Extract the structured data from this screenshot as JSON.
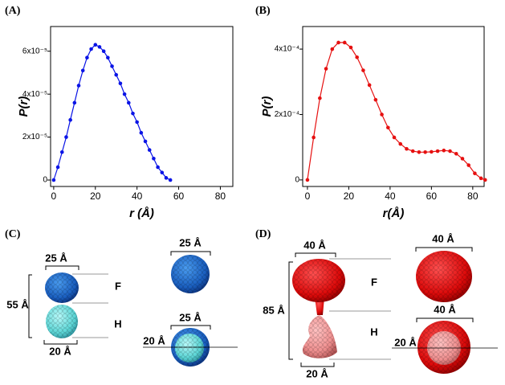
{
  "chart_data": [
    {
      "type": "line",
      "label": "(A)",
      "xlabel": "r (Å)",
      "ylabel": "P(r)",
      "color": "#0a14e6",
      "x": [
        0,
        2,
        4,
        6,
        8,
        10,
        12,
        14,
        16,
        18,
        20,
        22,
        24,
        26,
        28,
        30,
        32,
        34,
        36,
        38,
        40,
        42,
        44,
        46,
        48,
        50,
        52,
        54,
        56
      ],
      "values": [
        0,
        6e-06,
        1.3e-05,
        2e-05,
        2.8e-05,
        3.6e-05,
        4.4e-05,
        5.1e-05,
        5.7e-05,
        6.1e-05,
        6.3e-05,
        6.2e-05,
        6e-05,
        5.7e-05,
        5.3e-05,
        4.9e-05,
        4.5e-05,
        4e-05,
        3.6e-05,
        3.1e-05,
        2.7e-05,
        2.2e-05,
        1.8e-05,
        1.4e-05,
        1e-05,
        6e-06,
        3.5e-06,
        1e-06,
        0
      ],
      "xlim": [
        -1.5,
        86
      ],
      "xticks": [
        0,
        20,
        40,
        60,
        80
      ],
      "ylim": [
        -3e-06,
        7.15e-05
      ],
      "yticks": [
        0,
        {
          "value": 2e-05,
          "label": "2x10⁻⁵"
        },
        {
          "value": 4e-05,
          "label": "4x10⁻⁵"
        },
        {
          "value": 6e-05,
          "label": "6x10⁻⁵"
        }
      ]
    },
    {
      "type": "line",
      "label": "(B)",
      "xlabel": "r(Å)",
      "ylabel": "P(r)",
      "color": "#e61010",
      "x": [
        0,
        3,
        6,
        9,
        12,
        15,
        18,
        21,
        24,
        27,
        30,
        33,
        36,
        39,
        42,
        45,
        48,
        51,
        54,
        57,
        60,
        63,
        66,
        69,
        72,
        75,
        78,
        81,
        84,
        86
      ],
      "values": [
        0,
        0.00013,
        0.00025,
        0.00034,
        0.0004,
        0.00042,
        0.00042,
        0.000405,
        0.000375,
        0.000335,
        0.00029,
        0.000245,
        0.0002,
        0.00016,
        0.00013,
        0.00011,
        9.5e-05,
        8.8e-05,
        8.5e-05,
        8.5e-05,
        8.6e-05,
        8.8e-05,
        9e-05,
        8.8e-05,
        8e-05,
        6.5e-05,
        4.5e-05,
        2e-05,
        5e-06,
        0
      ],
      "xlim": [
        -2.3,
        85.5
      ],
      "xticks": [
        0,
        20,
        40,
        60,
        80
      ],
      "ylim": [
        -2e-05,
        0.000469
      ],
      "yticks": [
        0,
        {
          "value": 0.0002,
          "label": "2x10⁻⁴"
        },
        {
          "value": 0.0004,
          "label": "4x10⁻⁴"
        }
      ]
    }
  ],
  "diagrams": [
    {
      "label": "(C)",
      "annotations": [
        "25 Å",
        "55 Å",
        "F",
        "H",
        "20 Å",
        "25 Å",
        "25 Å",
        "20 Å"
      ]
    },
    {
      "label": "(D)",
      "annotations": [
        "40 Å",
        "85 Å",
        "F",
        "H",
        "20 Å",
        "40 Å",
        "40 Å",
        "20 Å"
      ]
    }
  ]
}
